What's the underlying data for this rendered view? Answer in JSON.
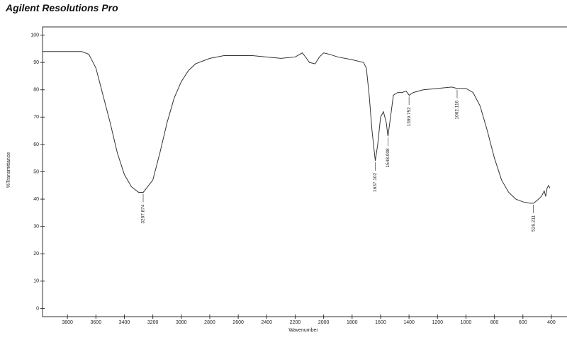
{
  "chart_data": {
    "type": "line",
    "title": "Agilent Resolutions Pro",
    "x_label": "Wavenumber",
    "y_label": "%Transmittance",
    "color": "#333333",
    "x": [
      3975,
      3700,
      3650,
      3600,
      3550,
      3500,
      3450,
      3400,
      3350,
      3300,
      3267,
      3200,
      3150,
      3100,
      3050,
      3000,
      2950,
      2900,
      2800,
      2700,
      2600,
      2500,
      2400,
      2300,
      2200,
      2150,
      2120,
      2100,
      2060,
      2030,
      2000,
      1960,
      1900,
      1800,
      1720,
      1700,
      1680,
      1660,
      1637,
      1620,
      1600,
      1580,
      1560,
      1548,
      1530,
      1510,
      1480,
      1450,
      1420,
      1399,
      1370,
      1300,
      1200,
      1100,
      1062,
      1000,
      950,
      900,
      850,
      800,
      750,
      700,
      650,
      600,
      550,
      526,
      500,
      470,
      450,
      440,
      430,
      420,
      410
    ],
    "values": [
      94,
      94,
      93,
      88,
      78,
      68,
      57,
      49,
      44.5,
      42.5,
      42.5,
      47,
      57,
      68,
      77,
      83,
      87,
      89.5,
      91.5,
      92.5,
      92.5,
      92.5,
      92,
      91.5,
      92,
      93.5,
      91.5,
      90,
      89.5,
      92,
      93.5,
      93,
      92,
      91,
      90,
      88,
      78,
      65,
      54,
      60,
      70,
      72,
      68,
      63,
      70,
      78,
      79,
      79,
      79.5,
      78,
      79,
      80,
      80.5,
      81,
      80.5,
      80.5,
      79,
      74,
      65,
      55,
      47,
      42.5,
      40,
      39,
      38.5,
      38.5,
      39.5,
      41,
      43,
      41,
      44,
      45,
      44
    ],
    "peaks": [
      3267.874,
      1637.102,
      1548.008,
      1399.752,
      1062.116,
      526.211
    ],
    "xlim": [
      3975,
      330
    ],
    "ylim": [
      -3,
      103
    ],
    "xticks": [
      3800,
      3600,
      3400,
      3200,
      3000,
      2800,
      2600,
      2400,
      2200,
      2000,
      1800,
      1600,
      1400,
      1200,
      1000,
      800,
      600,
      400
    ],
    "yticks": [
      0,
      10,
      20,
      30,
      40,
      50,
      60,
      70,
      80,
      90,
      100
    ],
    "grid": false
  }
}
